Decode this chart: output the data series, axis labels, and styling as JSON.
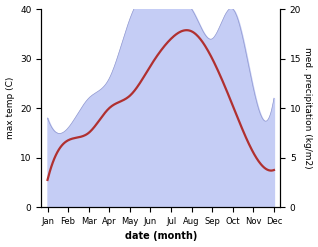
{
  "months": [
    "Jan",
    "Feb",
    "Mar",
    "Apr",
    "May",
    "Jun",
    "Jul",
    "Aug",
    "Sep",
    "Oct",
    "Nov",
    "Dec"
  ],
  "temp": [
    5.5,
    13.5,
    15.0,
    20.0,
    22.5,
    28.5,
    34.0,
    35.5,
    30.0,
    20.5,
    11.0,
    7.5
  ],
  "precip_kg": [
    9.0,
    8.0,
    11.0,
    13.0,
    19.0,
    22.0,
    21.0,
    20.0,
    17.0,
    20.0,
    12.0,
    11.0
  ],
  "temp_color": "#b03030",
  "precip_fill_color": "#c5cdf5",
  "precip_edge_color": "#9098d0",
  "temp_ylim": [
    0,
    40
  ],
  "precip_ylim": [
    0,
    20
  ],
  "ylabel_left": "max temp (C)",
  "ylabel_right": "med. precipitation (kg/m2)",
  "xlabel": "date (month)",
  "temp_yticks": [
    0,
    10,
    20,
    30,
    40
  ],
  "precip_yticks": [
    0,
    5,
    10,
    15,
    20
  ],
  "bg_color": "#ffffff",
  "line_width": 1.6
}
